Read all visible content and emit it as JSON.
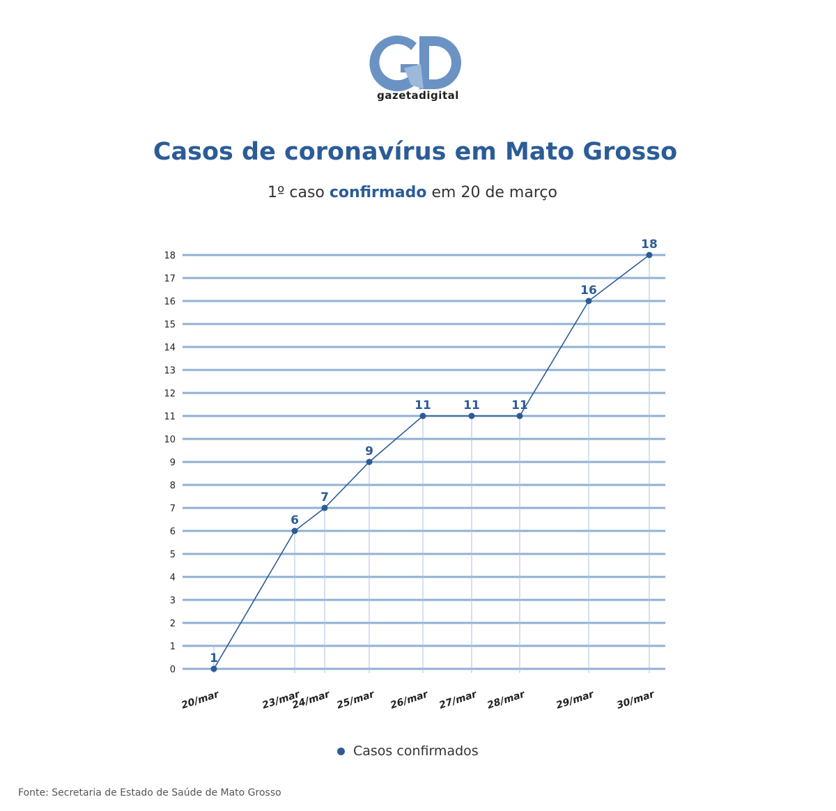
{
  "logo": {
    "text": "gazetadigital",
    "letters": "GD"
  },
  "title": "Casos de coronavírus em Mato Grosso",
  "subtitle": {
    "before": "1º caso ",
    "highlight": "confirmado",
    "after": " em 20 de março"
  },
  "chart_data": {
    "type": "line",
    "categories": [
      "20/mar",
      "23/mar",
      "24/mar",
      "25/mar",
      "26/mar",
      "27/mar",
      "28/mar",
      "29/mar",
      "30/mar"
    ],
    "series": [
      {
        "name": "Casos confirmados",
        "values": [
          1,
          6,
          7,
          9,
          11,
          11,
          11,
          16,
          18
        ]
      }
    ],
    "yticks": [
      0,
      1,
      2,
      3,
      4,
      5,
      6,
      7,
      8,
      9,
      10,
      11,
      12,
      13,
      14,
      15,
      16,
      17,
      18
    ],
    "ylim": [
      0,
      18
    ],
    "grid": true,
    "legend": "bottom-center",
    "colors": {
      "line": "#2b5c97",
      "grid": "#8fb0d4",
      "label": "#2b5c97"
    }
  },
  "legend_label": "Casos confirmados",
  "source": "Fonte: Secretaria de Estado de Saúde de Mato Grosso"
}
